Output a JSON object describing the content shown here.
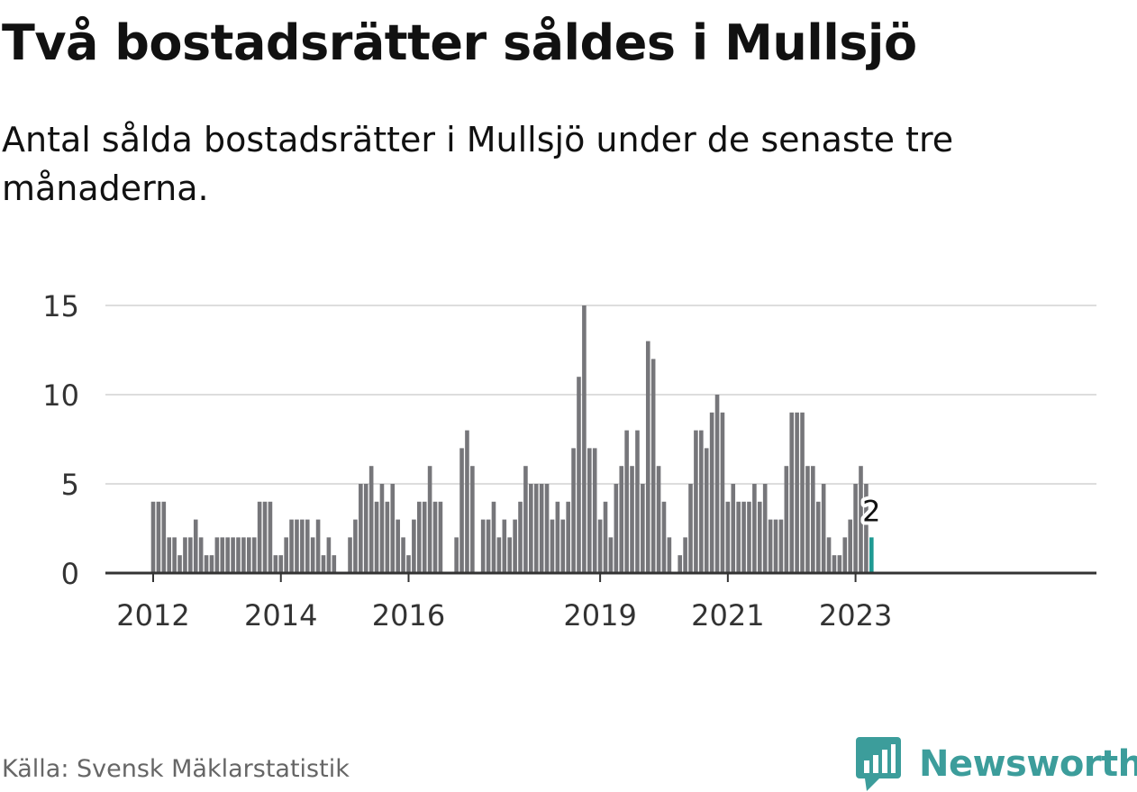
{
  "title": "Två bostadsrätter såldes i Mullsjö",
  "subtitle": "Antal sålda bostadsrätter i Mullsjö under de senaste tre månaderna.",
  "source": "Källa: Svensk Mäklarstatistik",
  "brand": {
    "name": "Newsworthy",
    "color": "#3c9d9b"
  },
  "colors": {
    "bar": "#76767a",
    "highlight": "#1f9a93",
    "grid": "#dddddd",
    "axis": "#333333",
    "text": "#333333"
  },
  "chart_data": {
    "type": "bar",
    "title": "Två bostadsrätter såldes i Mullsjö",
    "subtitle": "Antal sålda bostadsrätter i Mullsjö under de senaste tre månaderna.",
    "x_start": "2012-01",
    "frequency": "monthly",
    "ylim": [
      0,
      15
    ],
    "yticks": [
      0,
      5,
      10,
      15
    ],
    "xticks": [
      {
        "label": "2012",
        "month_index": 0
      },
      {
        "label": "2014",
        "month_index": 24
      },
      {
        "label": "2016",
        "month_index": 48
      },
      {
        "label": "2019",
        "month_index": 84
      },
      {
        "label": "2021",
        "month_index": 108
      },
      {
        "label": "2023",
        "month_index": 132
      }
    ],
    "grid": true,
    "values": [
      4,
      4,
      4,
      2,
      2,
      1,
      2,
      2,
      3,
      2,
      1,
      1,
      2,
      2,
      2,
      2,
      2,
      2,
      2,
      2,
      4,
      4,
      4,
      1,
      1,
      2,
      3,
      3,
      3,
      3,
      2,
      3,
      1,
      2,
      1,
      0,
      0,
      2,
      3,
      5,
      5,
      6,
      4,
      5,
      4,
      5,
      3,
      2,
      1,
      3,
      4,
      4,
      6,
      4,
      4,
      0,
      0,
      2,
      7,
      8,
      6,
      0,
      3,
      3,
      4,
      2,
      3,
      2,
      3,
      4,
      6,
      5,
      5,
      5,
      5,
      3,
      4,
      3,
      4,
      7,
      11,
      15,
      7,
      7,
      3,
      4,
      2,
      5,
      6,
      8,
      6,
      8,
      5,
      13,
      12,
      6,
      4,
      2,
      0,
      1,
      2,
      5,
      8,
      8,
      7,
      9,
      10,
      9,
      4,
      5,
      4,
      4,
      4,
      5,
      4,
      5,
      3,
      3,
      3,
      6,
      9,
      9,
      9,
      6,
      6,
      4,
      5,
      2,
      1,
      1,
      2,
      3,
      5,
      6,
      5,
      2
    ],
    "highlight": {
      "label": "2",
      "value": 2,
      "index": 135
    }
  }
}
